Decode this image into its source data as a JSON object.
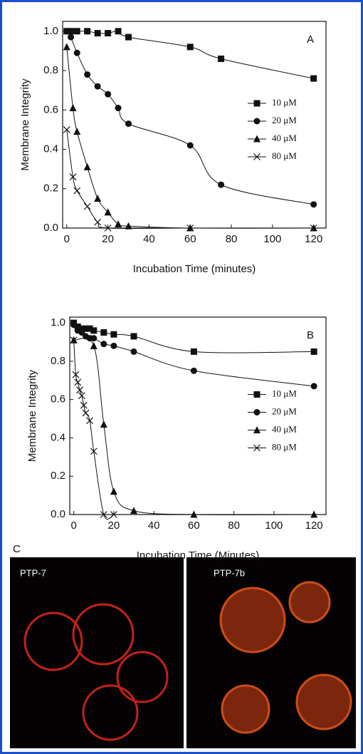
{
  "chart_data": [
    {
      "type": "line",
      "annotation": "A",
      "xlabel": "Incubation Time (minutes)",
      "ylabel": "Membrane Integrity",
      "xlim": [
        -2,
        126
      ],
      "ylim": [
        0,
        1.05
      ],
      "xticks": [
        0,
        20,
        40,
        60,
        80,
        100,
        120
      ],
      "yticks": [
        {
          "value": 0,
          "label": "0.0"
        },
        {
          "value": 0.2,
          "label": "0.2"
        },
        {
          "value": 0.4,
          "label": "0.4"
        },
        {
          "value": 0.6,
          "label": "0.6"
        },
        {
          "value": 0.8,
          "label": "0.8"
        },
        {
          "value": 1,
          "label": "1.0"
        }
      ],
      "legend": "center right",
      "series": [
        {
          "name": "10 μM",
          "color": "#111111",
          "marker": "square",
          "x": [
            0,
            2,
            5,
            10,
            15,
            20,
            25,
            30,
            60,
            75,
            120
          ],
          "values": [
            1.0,
            1.0,
            1.0,
            1.0,
            0.99,
            0.99,
            1.0,
            0.97,
            0.92,
            0.86,
            0.76
          ]
        },
        {
          "name": "20 μM",
          "color": "#111111",
          "marker": "circle",
          "x": [
            2,
            5,
            10,
            15,
            20,
            25,
            30,
            60,
            75,
            120
          ],
          "values": [
            0.97,
            0.89,
            0.78,
            0.72,
            0.68,
            0.61,
            0.53,
            0.42,
            0.22,
            0.12
          ]
        },
        {
          "name": "40 μM",
          "color": "#111111",
          "marker": "triangle",
          "x": [
            0,
            3,
            5,
            10,
            15,
            20,
            25,
            30,
            60,
            120
          ],
          "values": [
            0.92,
            0.61,
            0.49,
            0.31,
            0.15,
            0.08,
            0.02,
            0.01,
            0,
            0
          ]
        },
        {
          "name": "80 μM",
          "color": "#111111",
          "marker": "cross",
          "x": [
            0,
            3,
            5,
            10,
            15,
            20,
            60,
            120
          ],
          "values": [
            0.5,
            0.26,
            0.19,
            0.11,
            0.03,
            0,
            0,
            0
          ]
        }
      ]
    },
    {
      "type": "line",
      "annotation": "B",
      "xlabel": "Incubation Time (Minutes)",
      "ylabel": "Membrane Integrity",
      "xlim": [
        -2,
        126
      ],
      "ylim": [
        0,
        1.03
      ],
      "xticks": [
        0,
        20,
        40,
        60,
        80,
        100,
        120
      ],
      "yticks": [
        {
          "value": 0,
          "label": "0.0"
        },
        {
          "value": 0.2,
          "label": "0.2"
        },
        {
          "value": 0.4,
          "label": "0.4"
        },
        {
          "value": 0.6,
          "label": "0.6"
        },
        {
          "value": 0.8,
          "label": "0.8"
        },
        {
          "value": 1,
          "label": "1.0"
        }
      ],
      "legend": "center right",
      "series": [
        {
          "name": "10 μM",
          "color": "#111111",
          "marker": "square",
          "x": [
            0,
            2,
            4,
            6,
            8,
            10,
            15,
            20,
            30,
            60,
            120
          ],
          "values": [
            1.0,
            0.98,
            0.97,
            0.97,
            0.97,
            0.96,
            0.95,
            0.94,
            0.93,
            0.85,
            0.85
          ]
        },
        {
          "name": "20 μM",
          "color": "#111111",
          "marker": "circle",
          "x": [
            0,
            2,
            4,
            6,
            8,
            10,
            15,
            20,
            30,
            60,
            120
          ],
          "values": [
            0.99,
            0.96,
            0.95,
            0.93,
            0.92,
            0.92,
            0.89,
            0.88,
            0.85,
            0.75,
            0.67
          ]
        },
        {
          "name": "40 μM",
          "color": "#111111",
          "marker": "triangle",
          "x": [
            0,
            10,
            15,
            20,
            30,
            60,
            120
          ],
          "values": [
            0.91,
            0.88,
            0.47,
            0.12,
            0.02,
            0,
            0
          ]
        },
        {
          "name": "80 μM",
          "color": "#111111",
          "marker": "cross",
          "x": [
            0,
            1,
            2,
            3,
            4,
            5,
            6,
            8,
            10,
            15,
            20
          ],
          "values": [
            0.91,
            0.73,
            0.69,
            0.65,
            0.62,
            0.57,
            0.53,
            0.49,
            0.33,
            0,
            0
          ]
        }
      ]
    }
  ],
  "panel_c": {
    "label": "C",
    "images": [
      "PTP-7",
      "PTP-7b"
    ]
  }
}
